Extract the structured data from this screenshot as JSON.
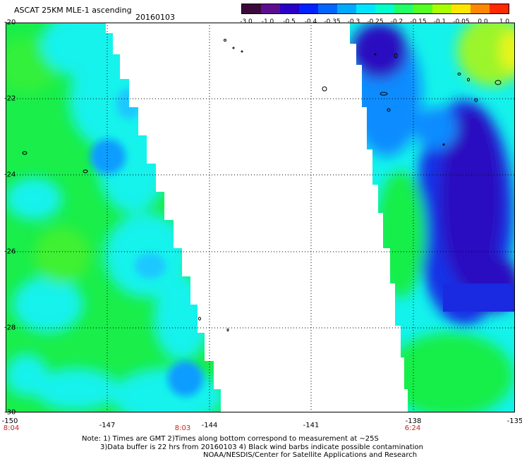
{
  "header": {
    "title": "ASCAT 25KM MLE-1 ascending",
    "date": "20160103"
  },
  "colorbar": {
    "labels": [
      "-3.0",
      "-1.0",
      "-0.5",
      "-0.4",
      "-0.35",
      "-0.3",
      "-0.25",
      "-0.2",
      "-0.15",
      "-0.1",
      "-0.05",
      "0.0",
      "1.0"
    ],
    "colors": [
      "#3a0a3a",
      "#5b0f8f",
      "#2a00c8",
      "#0022ff",
      "#0066ff",
      "#00aaff",
      "#00e5ff",
      "#00ffcc",
      "#22ff66",
      "#55ff22",
      "#aaff00",
      "#ffe600",
      "#ff8800",
      "#ff2a00"
    ]
  },
  "map": {
    "lat_labels": [
      "-20",
      "-22",
      "-24",
      "-26",
      "-28",
      "-30"
    ],
    "lon_labels": [
      "-150",
      "-147",
      "-144",
      "-141",
      "-138",
      "-135"
    ],
    "time_labels": [
      "8:04",
      "8:03",
      "6:24"
    ],
    "colors": {
      "green": "#19ee4a",
      "cyan": "#14f2ec",
      "blue": "#1733e6",
      "deep_blue": "#2a10c0",
      "yellow_green": "#bff51a",
      "gridline": "#000000",
      "time_text": "#c0281a"
    }
  },
  "notes": {
    "line1": "Note: 1) Times are GMT 2)Times along bottom correspond to measurement at ~25S",
    "line2": "3)Data buffer is 22 hrs from 20160103 4) Black wind barbs indicate possible contamination",
    "line3": "NOAA/NESDIS/Center for Satellite Applications and Research"
  }
}
